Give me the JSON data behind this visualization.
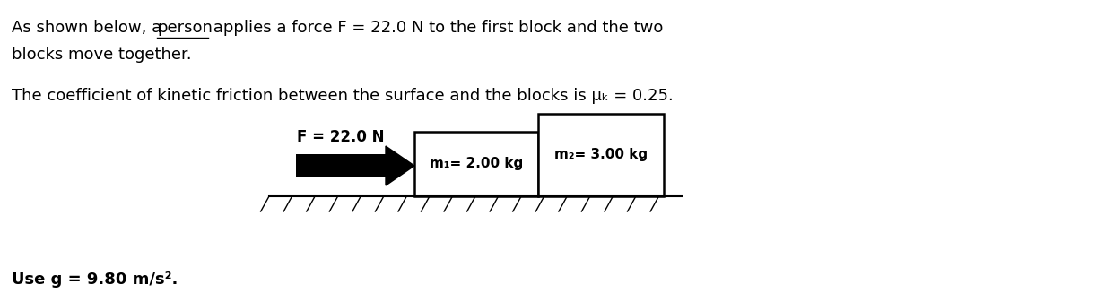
{
  "bg_color": "#ffffff",
  "line1_pre": "As shown below, a ",
  "line1_underline": "person",
  "line1_post": " applies a force F = 22.0 N to the first block and the two",
  "line2": "blocks move together.",
  "line3": "The coefficient of kinetic friction between the surface and the blocks is μₖ = 0.25.",
  "text_bottom": "Use g = 9.80 m/s².",
  "force_label": "F = 22.0 N",
  "block1_label": "m₁= 2.00 kg",
  "block2_label": "m₂= 3.00 kg",
  "block_fill": "#ffffff",
  "block_border": "#000000",
  "font_size_main": 13,
  "font_size_diagram": 11,
  "font_size_bottom": 13
}
